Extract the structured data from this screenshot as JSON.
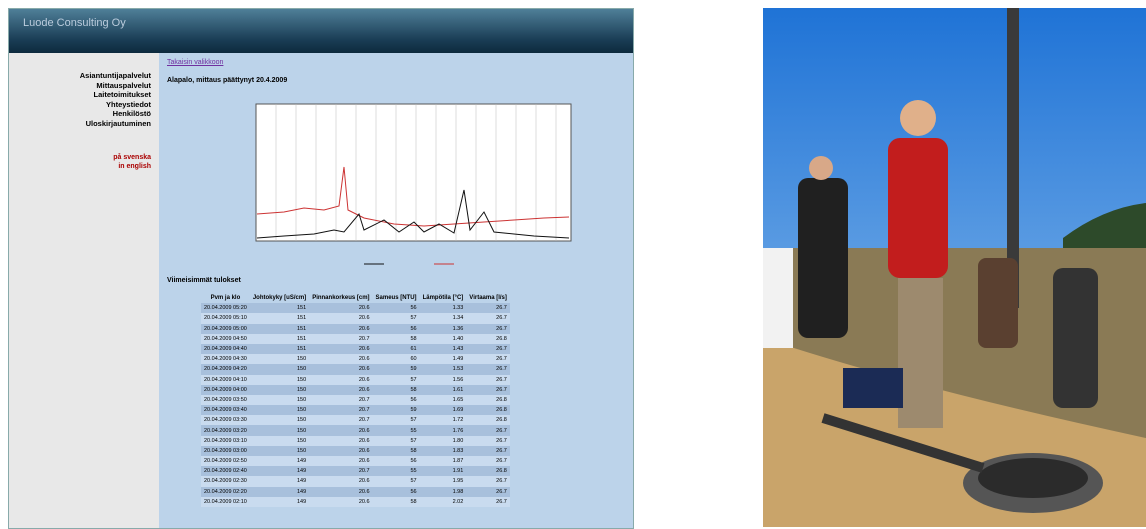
{
  "header": {
    "title": "Luode Consulting Oy"
  },
  "nav": [
    "Asiantuntijapalvelut",
    "Mittauspalvelut",
    "Laitetoimitukset",
    "Yhteystiedot",
    "Henkilöstö",
    "Uloskirjautuminen"
  ],
  "languages": [
    "på svenska",
    "in english"
  ],
  "main": {
    "back_link": "Takaisin valikkoon",
    "heading": "Alapalo, mittaus päättynyt 20.4.2009",
    "table_title": "Viimeisimmät tulokset"
  },
  "table": {
    "columns": [
      "Pvm ja klo",
      "Johtokyky [uS/cm]",
      "Pinnankorkeus [cm]",
      "Sameus [NTU]",
      "Lämpötila [°C]",
      "Virtaama [l/s]"
    ],
    "rows": [
      [
        "20.04.2009 05:20",
        "151",
        "20.6",
        "56",
        "1.33",
        "26.7"
      ],
      [
        "20.04.2009 05:10",
        "151",
        "20.6",
        "57",
        "1.34",
        "26.7"
      ],
      [
        "20.04.2009 05:00",
        "151",
        "20.6",
        "56",
        "1.36",
        "26.7"
      ],
      [
        "20.04.2009 04:50",
        "151",
        "20.7",
        "58",
        "1.40",
        "26.8"
      ],
      [
        "20.04.2009 04:40",
        "151",
        "20.6",
        "61",
        "1.43",
        "26.7"
      ],
      [
        "20.04.2009 04:30",
        "150",
        "20.6",
        "60",
        "1.49",
        "26.7"
      ],
      [
        "20.04.2009 04:20",
        "150",
        "20.6",
        "59",
        "1.53",
        "26.7"
      ],
      [
        "20.04.2009 04:10",
        "150",
        "20.6",
        "57",
        "1.56",
        "26.7"
      ],
      [
        "20.04.2009 04:00",
        "150",
        "20.6",
        "58",
        "1.61",
        "26.7"
      ],
      [
        "20.04.2009 03:50",
        "150",
        "20.7",
        "56",
        "1.65",
        "26.8"
      ],
      [
        "20.04.2009 03:40",
        "150",
        "20.7",
        "59",
        "1.69",
        "26.8"
      ],
      [
        "20.04.2009 03:30",
        "150",
        "20.7",
        "57",
        "1.72",
        "26.8"
      ],
      [
        "20.04.2009 03:20",
        "150",
        "20.6",
        "55",
        "1.76",
        "26.7"
      ],
      [
        "20.04.2009 03:10",
        "150",
        "20.6",
        "57",
        "1.80",
        "26.7"
      ],
      [
        "20.04.2009 03:00",
        "150",
        "20.6",
        "58",
        "1.83",
        "26.7"
      ],
      [
        "20.04.2009 02:50",
        "149",
        "20.6",
        "56",
        "1.87",
        "26.7"
      ],
      [
        "20.04.2009 02:40",
        "149",
        "20.7",
        "55",
        "1.91",
        "26.8"
      ],
      [
        "20.04.2009 02:30",
        "149",
        "20.6",
        "57",
        "1.95",
        "26.7"
      ],
      [
        "20.04.2009 02:20",
        "149",
        "20.6",
        "56",
        "1.98",
        "26.7"
      ],
      [
        "20.04.2009 02:10",
        "149",
        "20.6",
        "58",
        "2.02",
        "26.7"
      ]
    ]
  }
}
